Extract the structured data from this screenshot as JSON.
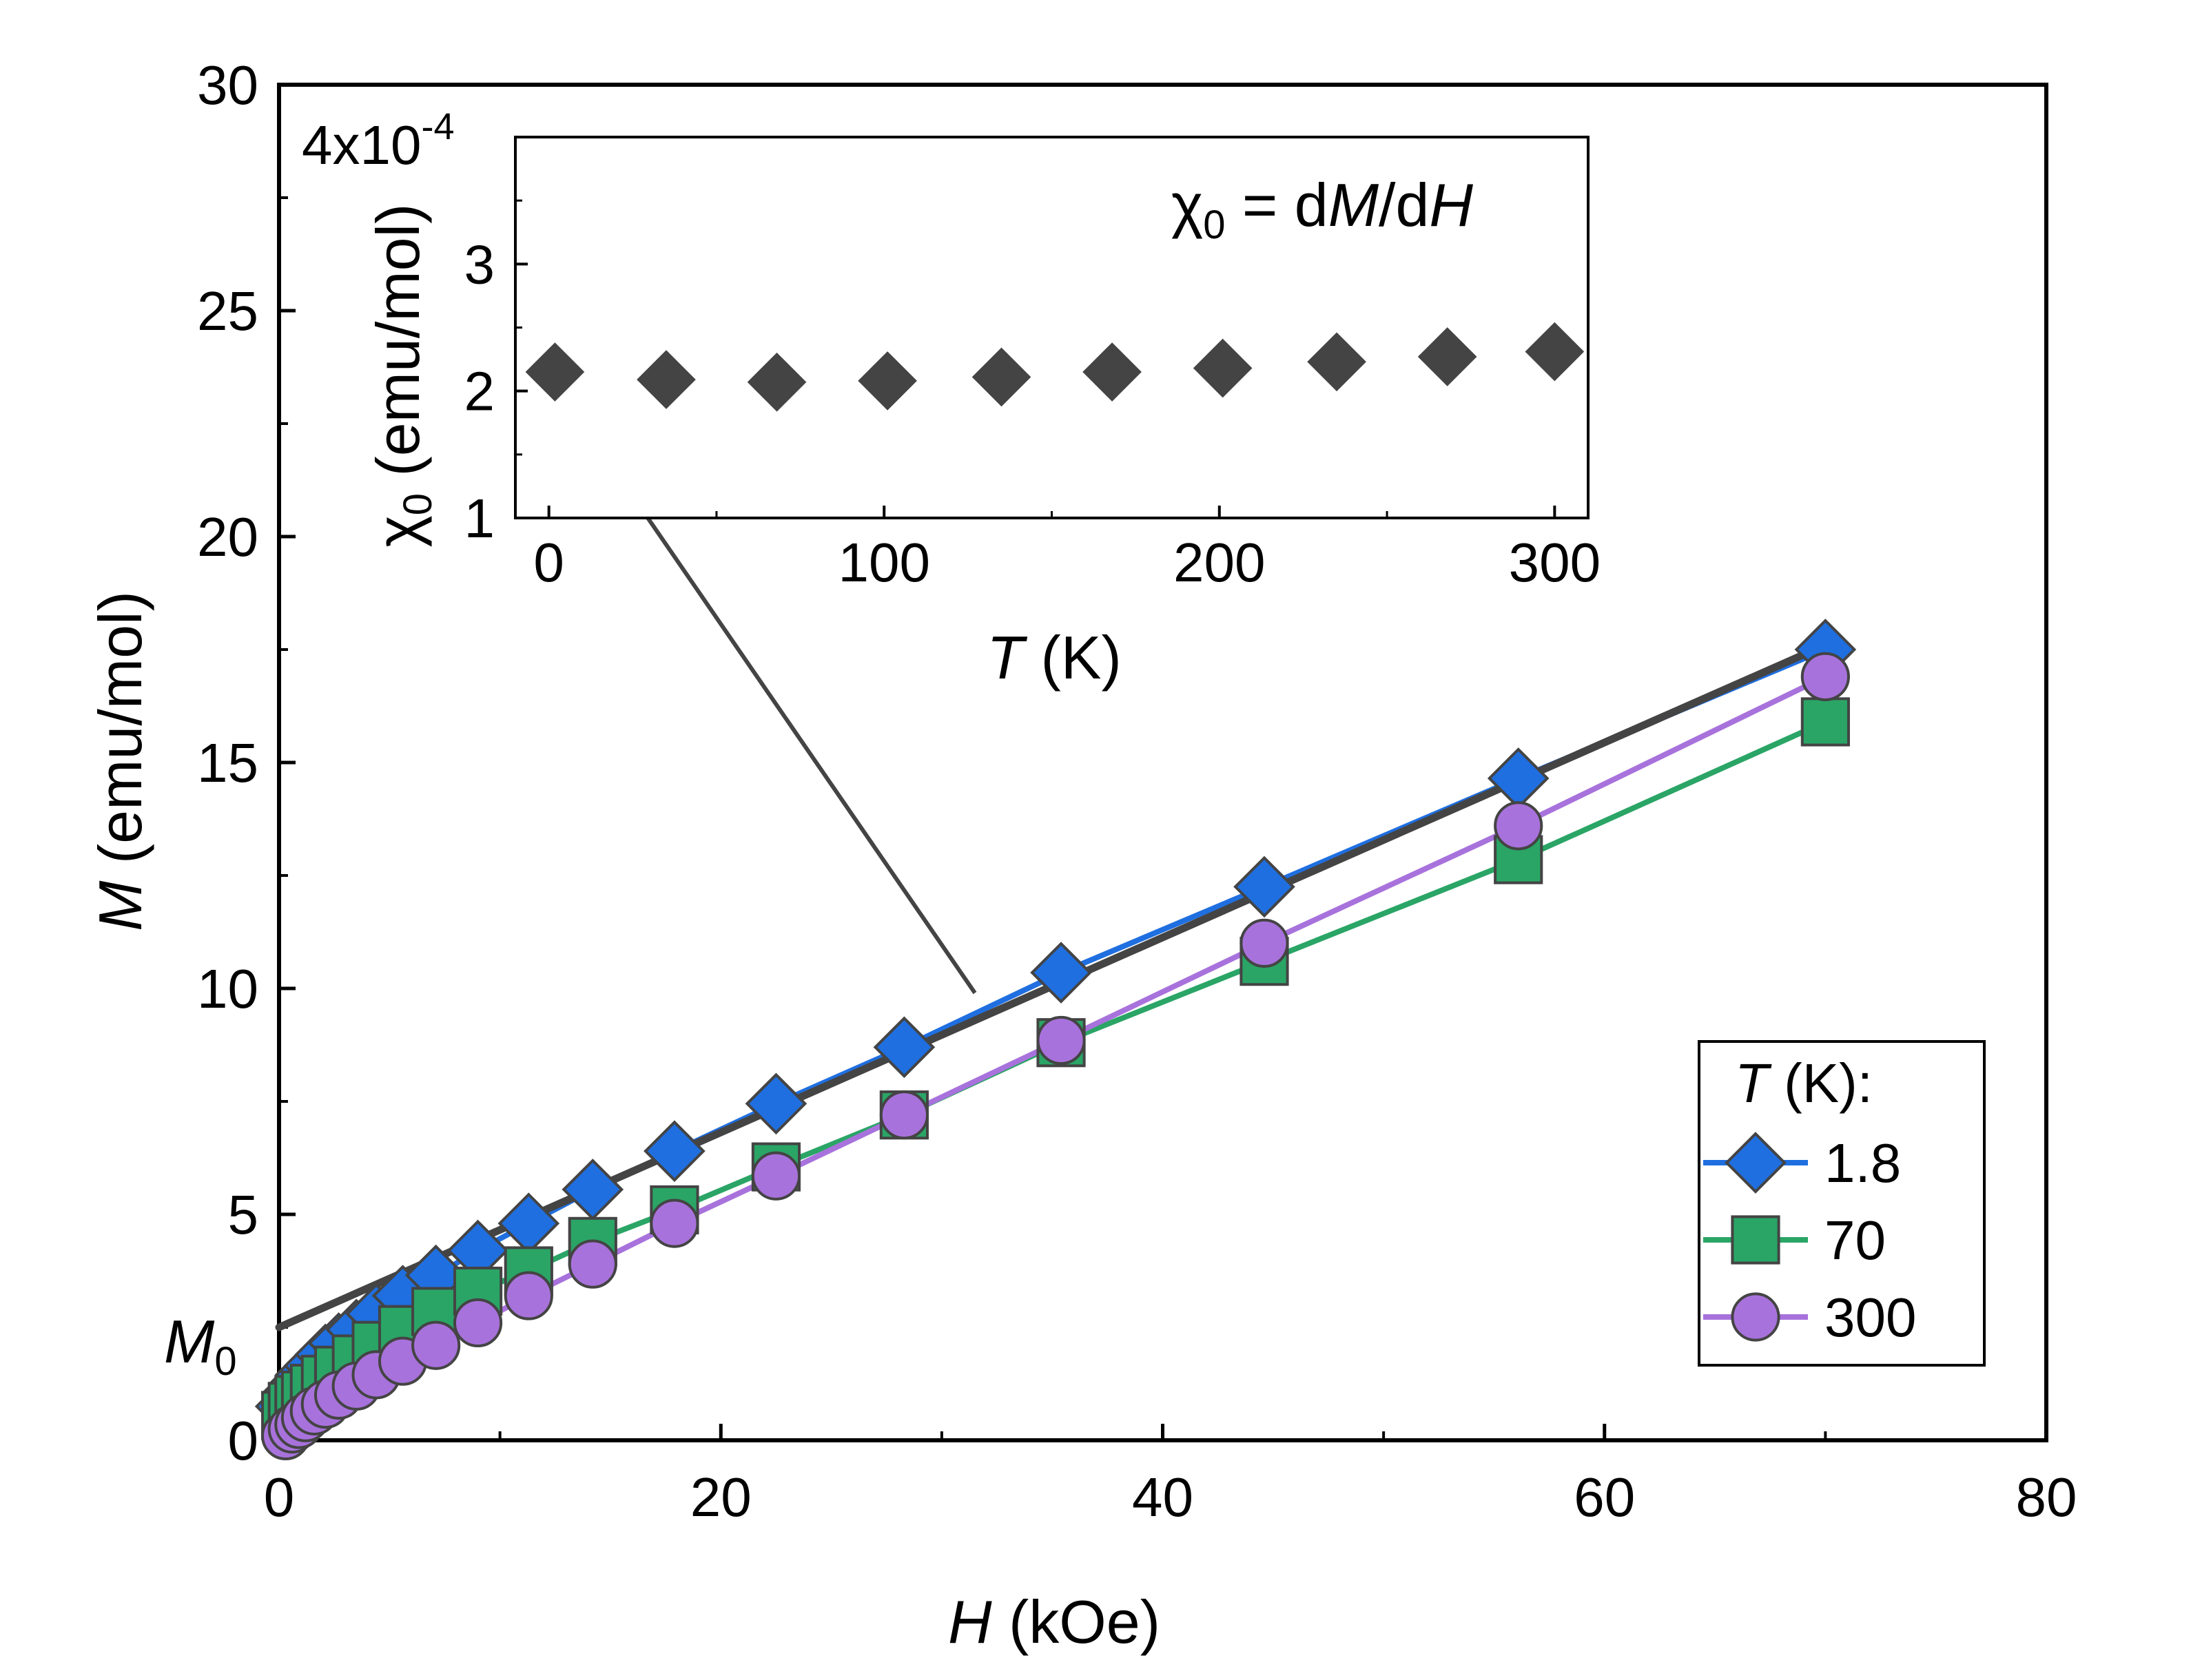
{
  "chart_data": [
    {
      "type": "line",
      "role": "main",
      "xlabel_var": "H",
      "xlabel_unit": " (kOe)",
      "ylabel_var": "M",
      "ylabel_unit": " (emu/mol)",
      "xlim": [
        0,
        80
      ],
      "ylim": [
        0,
        30
      ],
      "x_ticks": [
        "0",
        "20",
        "40",
        "60",
        "80"
      ],
      "y_ticks": [
        "0",
        "5",
        "10",
        "15",
        "20",
        "25",
        "30"
      ],
      "m0_label": "M",
      "m0_sub": "0",
      "m0_value": 2.5,
      "legend_title_var": "T",
      "legend_title_unit": " (K):",
      "series": [
        {
          "name": "1.8",
          "marker": "diamond",
          "color": "#1f6fe0",
          "x": [
            0.3,
            0.6,
            0.9,
            1.2,
            1.6,
            2.1,
            2.7,
            3.5,
            4.4,
            5.6,
            7.1,
            9.0,
            11.3,
            14.2,
            17.9,
            22.5,
            28.3,
            35.4,
            44.6,
            56.1,
            70.0
          ],
          "y": [
            0.75,
            1.05,
            1.25,
            1.45,
            1.65,
            1.9,
            2.15,
            2.45,
            2.8,
            3.2,
            3.65,
            4.2,
            4.8,
            5.55,
            6.4,
            7.45,
            8.7,
            10.35,
            12.25,
            14.65,
            17.5
          ]
        },
        {
          "name": "70",
          "marker": "square",
          "color": "#2aa566",
          "x": [
            0.3,
            0.6,
            0.9,
            1.2,
            1.6,
            2.1,
            2.7,
            3.5,
            4.4,
            5.6,
            7.1,
            9.0,
            11.3,
            14.2,
            17.9,
            22.5,
            28.3,
            35.4,
            44.6,
            56.1,
            70.0
          ],
          "y": [
            0.55,
            0.75,
            0.9,
            1.0,
            1.15,
            1.35,
            1.55,
            1.8,
            2.1,
            2.45,
            2.85,
            3.3,
            3.75,
            4.4,
            5.1,
            6.05,
            7.2,
            8.8,
            10.6,
            12.85,
            15.9
          ]
        },
        {
          "name": "300",
          "marker": "circle",
          "color": "#a872dc",
          "x": [
            0.3,
            0.6,
            0.9,
            1.2,
            1.6,
            2.1,
            2.7,
            3.5,
            4.4,
            5.6,
            7.1,
            9.0,
            11.3,
            14.2,
            17.9,
            22.5,
            28.3,
            35.4,
            44.6,
            56.1,
            70.0
          ],
          "y": [
            0.1,
            0.25,
            0.35,
            0.5,
            0.65,
            0.8,
            1.0,
            1.2,
            1.45,
            1.75,
            2.1,
            2.6,
            3.2,
            3.9,
            4.8,
            5.85,
            7.2,
            8.85,
            11.0,
            13.6,
            16.9
          ]
        }
      ],
      "fit_line": {
        "x": [
          0,
          70
        ],
        "y": [
          2.5,
          17.6
        ],
        "color": "#444444"
      },
      "arrow": {
        "from": [
          31.5,
          9.9
        ],
        "to_inset": [
          8,
          2.15
        ],
        "color": "#444444"
      }
    },
    {
      "type": "scatter",
      "role": "inset",
      "title_sym": "χ",
      "title_sub": "0",
      "title_rest": " = d",
      "title_var1": "M",
      "title_slash": "/d",
      "title_var2": "H",
      "xlabel_var": "T",
      "xlabel_unit": " (K)",
      "ylabel_sym": "χ",
      "ylabel_sub": "0",
      "ylabel_unit": " (emu/mol)",
      "xlim": [
        -10,
        310
      ],
      "ylim": [
        1,
        4
      ],
      "x_ticks": [
        "0",
        "100",
        "200",
        "300"
      ],
      "y_ticks": [
        "1",
        "2",
        "3"
      ],
      "y_top_base": "4x10",
      "y_top_exp": "-4",
      "marker": "diamond",
      "color": "#444444",
      "x": [
        1.8,
        35,
        68,
        101,
        135,
        168,
        201,
        235,
        268,
        300
      ],
      "y": [
        2.15,
        2.09,
        2.07,
        2.08,
        2.11,
        2.15,
        2.18,
        2.23,
        2.27,
        2.31
      ]
    }
  ]
}
